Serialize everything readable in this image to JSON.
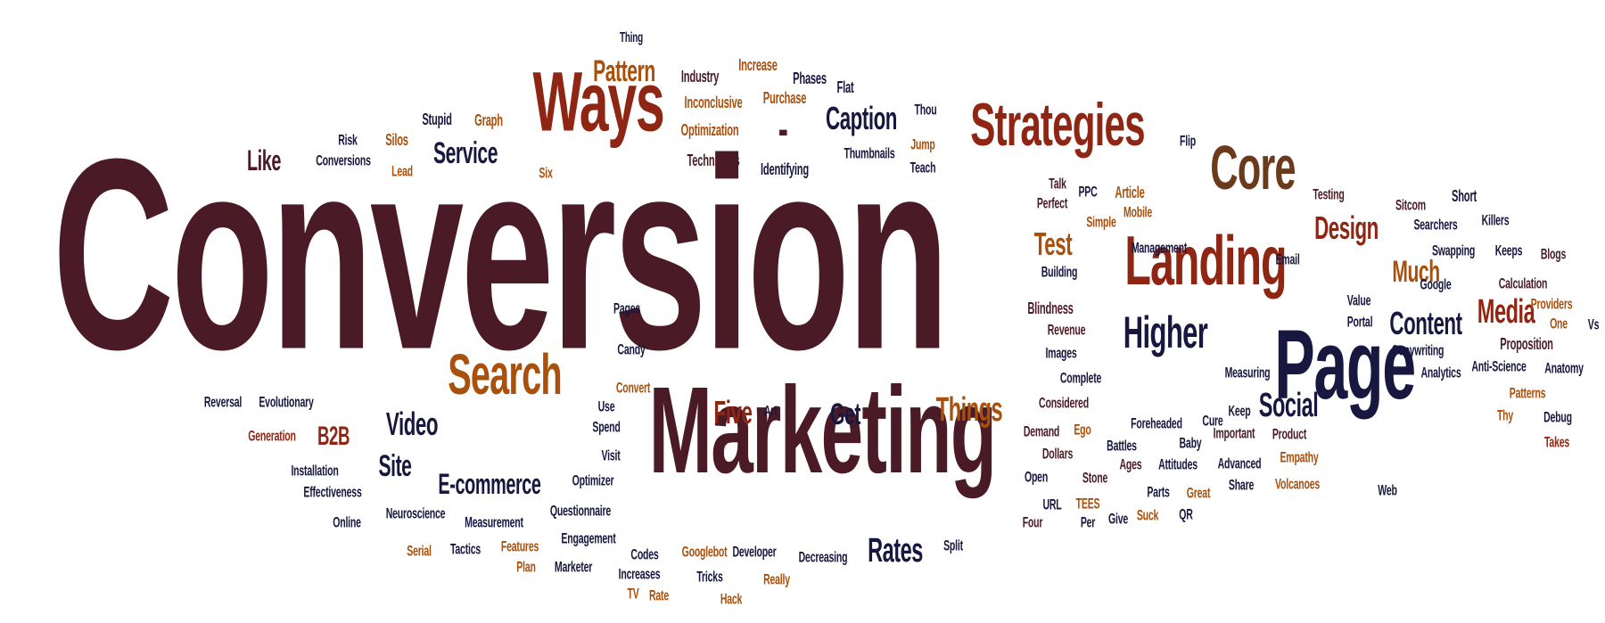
{
  "palette": {
    "maroon": "#4a1b26",
    "red": "#8f2613",
    "orange": "#a9500d",
    "brown": "#6b3a1b",
    "navy": "#17173f"
  },
  "words": [
    {
      "text": "Conversion",
      "color": "maroon"
    },
    {
      "text": "Marketing",
      "color": "maroon"
    },
    {
      "text": "Page",
      "color": "navy"
    },
    {
      "text": "Ways",
      "color": "red"
    },
    {
      "text": "Landing",
      "color": "red"
    },
    {
      "text": "Strategies",
      "color": "red"
    },
    {
      "text": "Core",
      "color": "brown"
    },
    {
      "text": "Search",
      "color": "orange"
    },
    {
      "text": "-",
      "color": "maroon"
    },
    {
      "text": "Higher",
      "color": "navy"
    },
    {
      "text": "Caption",
      "color": "navy"
    },
    {
      "text": "Five",
      "color": "red"
    },
    {
      "text": "Things",
      "color": "orange"
    },
    {
      "text": "Rates",
      "color": "navy"
    },
    {
      "text": "Social",
      "color": "navy"
    },
    {
      "text": "Content",
      "color": "navy"
    },
    {
      "text": "Media",
      "color": "red"
    },
    {
      "text": "Design",
      "color": "red"
    },
    {
      "text": "Much",
      "color": "orange"
    },
    {
      "text": "Video",
      "color": "navy"
    },
    {
      "text": "E-commerce",
      "color": "navy"
    },
    {
      "text": "Service",
      "color": "navy"
    },
    {
      "text": "Test",
      "color": "orange"
    },
    {
      "text": "Site",
      "color": "navy"
    },
    {
      "text": "Pattern",
      "color": "orange"
    },
    {
      "text": "Get",
      "color": "navy"
    },
    {
      "text": "B2B",
      "color": "red"
    },
    {
      "text": "Like",
      "color": "maroon"
    },
    {
      "text": "Thing",
      "color": "navy"
    },
    {
      "text": "Increase",
      "color": "orange"
    },
    {
      "text": "Industry",
      "color": "maroon"
    },
    {
      "text": "Phases",
      "color": "navy"
    },
    {
      "text": "Flat",
      "color": "navy"
    },
    {
      "text": "Inconclusive",
      "color": "orange"
    },
    {
      "text": "Purchase",
      "color": "orange"
    },
    {
      "text": "Thou",
      "color": "navy"
    },
    {
      "text": "Stupid",
      "color": "navy"
    },
    {
      "text": "Graph",
      "color": "orange"
    },
    {
      "text": "Optimization",
      "color": "orange"
    },
    {
      "text": "Risk",
      "color": "navy"
    },
    {
      "text": "Silos",
      "color": "orange"
    },
    {
      "text": "Jump",
      "color": "orange"
    },
    {
      "text": "Conversions",
      "color": "navy"
    },
    {
      "text": "Lead",
      "color": "orange"
    },
    {
      "text": "Techniques",
      "color": "maroon"
    },
    {
      "text": "Thumbnails",
      "color": "navy"
    },
    {
      "text": "Teach",
      "color": "navy"
    },
    {
      "text": "Identifying",
      "color": "navy"
    },
    {
      "text": "Six",
      "color": "orange"
    },
    {
      "text": "Flip",
      "color": "navy"
    },
    {
      "text": "Talk",
      "color": "maroon"
    },
    {
      "text": "PPC",
      "color": "navy"
    },
    {
      "text": "Article",
      "color": "orange"
    },
    {
      "text": "Perfect",
      "color": "maroon"
    },
    {
      "text": "Mobile",
      "color": "orange"
    },
    {
      "text": "Simple",
      "color": "orange"
    },
    {
      "text": "Testing",
      "color": "maroon"
    },
    {
      "text": "Sitcom",
      "color": "maroon"
    },
    {
      "text": "Short",
      "color": "navy"
    },
    {
      "text": "Searchers",
      "color": "navy"
    },
    {
      "text": "Killers",
      "color": "navy"
    },
    {
      "text": "Management",
      "color": "navy"
    },
    {
      "text": "Email",
      "color": "navy"
    },
    {
      "text": "Swapping",
      "color": "navy"
    },
    {
      "text": "Keeps",
      "color": "navy"
    },
    {
      "text": "Blogs",
      "color": "maroon"
    },
    {
      "text": "Building",
      "color": "navy"
    },
    {
      "text": "Google",
      "color": "navy"
    },
    {
      "text": "Calculation",
      "color": "maroon"
    },
    {
      "text": "Value",
      "color": "navy"
    },
    {
      "text": "Providers",
      "color": "orange"
    },
    {
      "text": "Blindness",
      "color": "maroon"
    },
    {
      "text": "Portal",
      "color": "navy"
    },
    {
      "text": "One",
      "color": "orange"
    },
    {
      "text": "Vs",
      "color": "navy"
    },
    {
      "text": "Revenue",
      "color": "maroon"
    },
    {
      "text": "Pages",
      "color": "navy"
    },
    {
      "text": "Proposition",
      "color": "maroon"
    },
    {
      "text": "Images",
      "color": "navy"
    },
    {
      "text": "Copywriting",
      "color": "navy"
    },
    {
      "text": "Candy",
      "color": "navy"
    },
    {
      "text": "Complete",
      "color": "navy"
    },
    {
      "text": "Measuring",
      "color": "navy"
    },
    {
      "text": "Anti-Science",
      "color": "navy"
    },
    {
      "text": "Anatomy",
      "color": "navy"
    },
    {
      "text": "Analytics",
      "color": "navy"
    },
    {
      "text": "Convert",
      "color": "orange"
    },
    {
      "text": "Reversal",
      "color": "navy"
    },
    {
      "text": "Evolutionary",
      "color": "navy"
    },
    {
      "text": "Use",
      "color": "navy"
    },
    {
      "text": "Considered",
      "color": "maroon"
    },
    {
      "text": "Patterns",
      "color": "orange"
    },
    {
      "text": "Spend",
      "color": "navy"
    },
    {
      "text": "Art",
      "color": "navy"
    },
    {
      "text": "Keep",
      "color": "navy"
    },
    {
      "text": "Thy",
      "color": "orange"
    },
    {
      "text": "Debug",
      "color": "navy"
    },
    {
      "text": "Generation",
      "color": "red"
    },
    {
      "text": "Demand",
      "color": "maroon"
    },
    {
      "text": "Ego",
      "color": "orange"
    },
    {
      "text": "Foreheaded",
      "color": "navy"
    },
    {
      "text": "Cure",
      "color": "navy"
    },
    {
      "text": "Important",
      "color": "maroon"
    },
    {
      "text": "Product",
      "color": "maroon"
    },
    {
      "text": "Takes",
      "color": "red"
    },
    {
      "text": "Visit",
      "color": "navy"
    },
    {
      "text": "Dollars",
      "color": "maroon"
    },
    {
      "text": "Battles",
      "color": "navy"
    },
    {
      "text": "Baby",
      "color": "navy"
    },
    {
      "text": "Empathy",
      "color": "orange"
    },
    {
      "text": "Installation",
      "color": "navy"
    },
    {
      "text": "Ages",
      "color": "maroon"
    },
    {
      "text": "Attitudes",
      "color": "navy"
    },
    {
      "text": "Advanced",
      "color": "navy"
    },
    {
      "text": "Optimizer",
      "color": "navy"
    },
    {
      "text": "Open",
      "color": "navy"
    },
    {
      "text": "Stone",
      "color": "maroon"
    },
    {
      "text": "Share",
      "color": "navy"
    },
    {
      "text": "Volcanoes",
      "color": "orange"
    },
    {
      "text": "Effectiveness",
      "color": "navy"
    },
    {
      "text": "Parts",
      "color": "navy"
    },
    {
      "text": "Great",
      "color": "orange"
    },
    {
      "text": "Web",
      "color": "navy"
    },
    {
      "text": "URL",
      "color": "navy"
    },
    {
      "text": "TEES",
      "color": "orange"
    },
    {
      "text": "Neuroscience",
      "color": "navy"
    },
    {
      "text": "Questionnaire",
      "color": "navy"
    },
    {
      "text": "Give",
      "color": "navy"
    },
    {
      "text": "Suck",
      "color": "orange"
    },
    {
      "text": "QR",
      "color": "navy"
    },
    {
      "text": "Online",
      "color": "navy"
    },
    {
      "text": "Measurement",
      "color": "navy"
    },
    {
      "text": "Four",
      "color": "maroon"
    },
    {
      "text": "Per",
      "color": "navy"
    },
    {
      "text": "Engagement",
      "color": "navy"
    },
    {
      "text": "Features",
      "color": "orange"
    },
    {
      "text": "Split",
      "color": "navy"
    },
    {
      "text": "Serial",
      "color": "orange"
    },
    {
      "text": "Tactics",
      "color": "navy"
    },
    {
      "text": "Codes",
      "color": "navy"
    },
    {
      "text": "Googlebot",
      "color": "orange"
    },
    {
      "text": "Developer",
      "color": "navy"
    },
    {
      "text": "Decreasing",
      "color": "navy"
    },
    {
      "text": "Plan",
      "color": "orange"
    },
    {
      "text": "Marketer",
      "color": "navy"
    },
    {
      "text": "Increases",
      "color": "navy"
    },
    {
      "text": "Tricks",
      "color": "navy"
    },
    {
      "text": "Really",
      "color": "orange"
    },
    {
      "text": "TV",
      "color": "orange"
    },
    {
      "text": "Rate",
      "color": "orange"
    },
    {
      "text": "Hack",
      "color": "orange"
    }
  ]
}
